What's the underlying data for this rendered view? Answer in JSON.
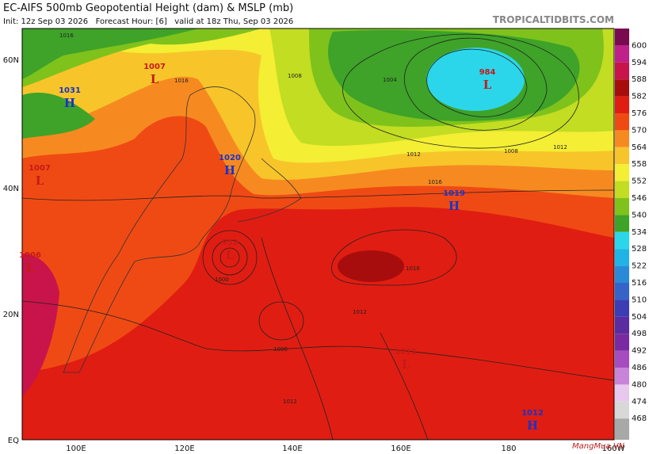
{
  "header": {
    "title": "EC-AIFS 500mb Geopotential Height (dam) & MSLP (mb)",
    "subtitle": "Init: 12z Sep 03 2026   Forecast Hour: [6]   valid at 18z Thu, Sep 03 2026",
    "site": "TROPICALTIDBITS.COM"
  },
  "latitudes": [
    "60N",
    "40N",
    "20N",
    "EQ"
  ],
  "longitudes": [
    "100E",
    "120E",
    "140E",
    "160E",
    "180",
    "160W"
  ],
  "colorbar": [
    {
      "label": "600",
      "color": "#c0208a"
    },
    {
      "label": "594",
      "color": "#c8144a"
    },
    {
      "label": "588",
      "color": "#a80d0d"
    },
    {
      "label": "582",
      "color": "#e01d12"
    },
    {
      "label": "576",
      "color": "#f04a14"
    },
    {
      "label": "570",
      "color": "#f68a20"
    },
    {
      "label": "564",
      "color": "#f7c52a"
    },
    {
      "label": "558",
      "color": "#f4ee34"
    },
    {
      "label": "552",
      "color": "#c2dd22"
    },
    {
      "label": "546",
      "color": "#7fc21c"
    },
    {
      "label": "540",
      "color": "#3ea328"
    },
    {
      "label": "534",
      "color": "#2cd6ea"
    },
    {
      "label": "528",
      "color": "#20b4e6"
    },
    {
      "label": "522",
      "color": "#2a8ad8"
    },
    {
      "label": "516",
      "color": "#3464c8"
    },
    {
      "label": "510",
      "color": "#3c3cb4"
    },
    {
      "label": "504",
      "color": "#5a2ca0"
    },
    {
      "label": "498",
      "color": "#7a2aa0"
    },
    {
      "label": "492",
      "color": "#a64cc0"
    },
    {
      "label": "486",
      "color": "#c884d8"
    },
    {
      "label": "480",
      "color": "#e8c8ee"
    },
    {
      "label": "474",
      "color": "#d8d8d8"
    },
    {
      "label": "468",
      "color": "#a8a8a8"
    }
  ],
  "colorbar_top": "#7a0a50",
  "centers": [
    {
      "letter": "H",
      "pressure": "1031"
    },
    {
      "letter": "L",
      "pressure": "1007"
    },
    {
      "letter": "H",
      "pressure": "1020"
    },
    {
      "letter": "L",
      "pressure": "1007"
    },
    {
      "letter": "L",
      "pressure": "1006"
    },
    {
      "letter": "L",
      "pressure": "952"
    },
    {
      "letter": "L",
      "pressure": "984"
    },
    {
      "letter": "H",
      "pressure": "1019"
    },
    {
      "letter": "L",
      "pressure": "1011"
    },
    {
      "letter": "H",
      "pressure": "1012"
    }
  ],
  "isobar_labels": [
    "1016",
    "1016",
    "1008",
    "1012",
    "1004",
    "1016",
    "1012",
    "1008",
    "1016",
    "1012",
    "1000",
    "1012",
    "1008"
  ],
  "watermark": "MangMua.VN"
}
